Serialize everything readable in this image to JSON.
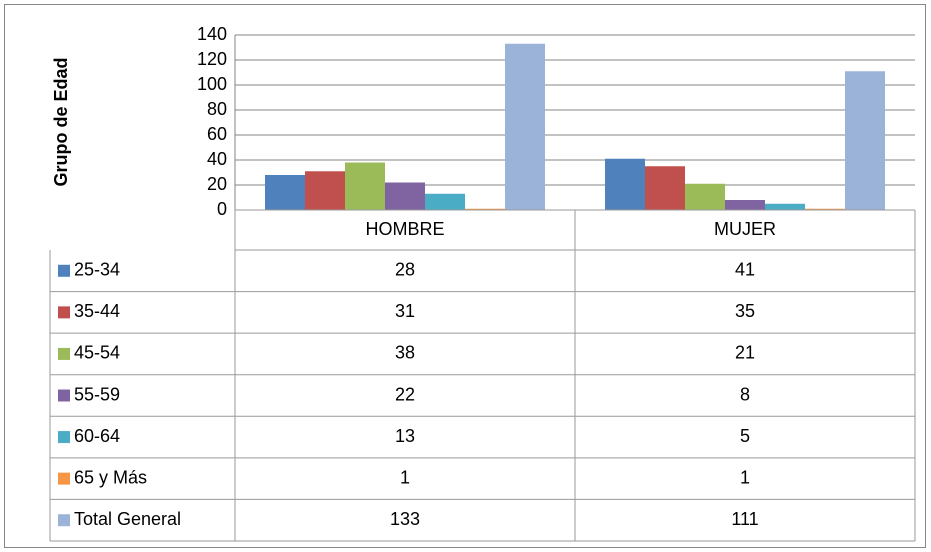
{
  "chart_data": {
    "type": "bar",
    "y_label": "Grupo de Edad",
    "categories": [
      "HOMBRE",
      "MUJER"
    ],
    "series": [
      {
        "name": "25-34",
        "color": "#4f81bd",
        "values": [
          28,
          41
        ]
      },
      {
        "name": "35-44",
        "color": "#c0504d",
        "values": [
          31,
          35
        ]
      },
      {
        "name": "45-54",
        "color": "#9bbb59",
        "values": [
          38,
          21
        ]
      },
      {
        "name": "55-59",
        "color": "#8064a2",
        "values": [
          22,
          8
        ]
      },
      {
        "name": "60-64",
        "color": "#4bacc6",
        "values": [
          13,
          5
        ]
      },
      {
        "name": "65 y Más",
        "color": "#f79646",
        "values": [
          1,
          1
        ]
      },
      {
        "name": "Total General",
        "color": "#9bb3d9",
        "values": [
          133,
          111
        ]
      }
    ],
    "ylim": [
      0,
      140
    ],
    "yticks": [
      0,
      20,
      40,
      60,
      80,
      100,
      120,
      140
    ],
    "grid": true
  }
}
